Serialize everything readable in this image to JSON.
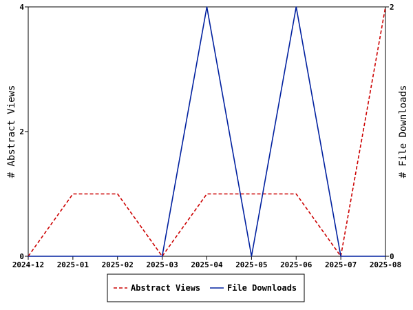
{
  "chart_data": {
    "type": "line",
    "x": [
      "2024-12",
      "2025-01",
      "2025-02",
      "2025-03",
      "2025-04",
      "2025-05",
      "2025-06",
      "2025-07",
      "2025-08"
    ],
    "series": [
      {
        "name": "Abstract Views",
        "axis": "left",
        "color": "#cc0000",
        "dash": "dashed",
        "values": [
          0,
          1,
          1,
          0,
          1,
          1,
          1,
          0,
          4
        ]
      },
      {
        "name": "File Downloads",
        "axis": "right",
        "color": "#00209f",
        "dash": "solid",
        "values": [
          0,
          0,
          0,
          0,
          2,
          0,
          2,
          0,
          0
        ]
      }
    ],
    "ylabel_left": "# Abstract Views",
    "ylabel_right": "# File Downloads",
    "ylim_left": [
      0,
      4
    ],
    "ylim_right": [
      0,
      2
    ],
    "yticks_left": [
      0,
      2,
      4
    ],
    "yticks_right": [
      0,
      2
    ],
    "grid": false,
    "legend_position": "bottom-center"
  }
}
